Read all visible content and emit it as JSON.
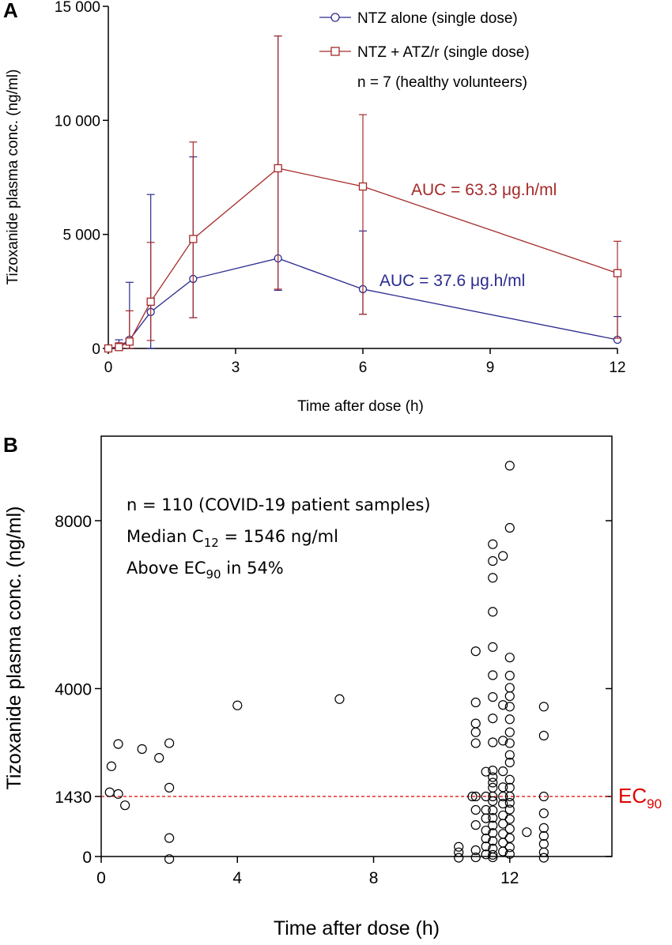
{
  "colors": {
    "blue": "#2b2b8f",
    "red": "#a52a2a",
    "ec90": "#e00000",
    "black": "#000000"
  },
  "chart_data": [
    {
      "panel": "A",
      "type": "line",
      "xlabel": "Time after dose (h)",
      "ylabel": "Tizoxanide plasma conc. (ng/ml)",
      "xlim": [
        0,
        12
      ],
      "ylim": [
        0,
        15000
      ],
      "xticks": [
        0,
        3,
        6,
        9,
        12
      ],
      "yticks": [
        0,
        5000,
        10000,
        15000
      ],
      "ytick_labels": [
        "0",
        "5 000",
        "10 000",
        "15 000"
      ],
      "series": [
        {
          "name": "NTZ alone (single dose)",
          "marker": "circle",
          "color": "#2b2b8f",
          "x": [
            0,
            0.25,
            0.5,
            1,
            2,
            4,
            6,
            12
          ],
          "y": [
            0,
            80,
            380,
            1600,
            3050,
            3950,
            2600,
            380
          ],
          "err_upper": [
            0,
            380,
            2900,
            6750,
            8400,
            13700,
            5150,
            1400
          ],
          "err_lower": [
            0,
            0,
            0,
            0,
            1350,
            2550,
            1500,
            380
          ]
        },
        {
          "name": "NTZ + ATZ/r (single dose)",
          "marker": "square",
          "color": "#a52a2a",
          "x": [
            0,
            0.25,
            0.5,
            1,
            2,
            4,
            6,
            12
          ],
          "y": [
            0,
            60,
            300,
            2050,
            4800,
            7900,
            7100,
            3300
          ],
          "err_upper": [
            0,
            250,
            1650,
            4650,
            9050,
            13700,
            10250,
            4700
          ],
          "err_lower": [
            0,
            0,
            0,
            350,
            1350,
            2600,
            1500,
            450
          ]
        }
      ],
      "annotations": {
        "n_text": "n = 7 (healthy volunteers)",
        "auc_red": "AUC = 63.3 μg.h/ml",
        "auc_blue": "AUC = 37.6 μg.h/ml"
      }
    },
    {
      "panel": "B",
      "type": "scatter",
      "xlabel": "Time after dose (h)",
      "ylabel": "Tizoxanide plasma conc. (ng/ml)",
      "xlim": [
        0,
        15
      ],
      "ylim": [
        0,
        10000
      ],
      "xticks": [
        0,
        4,
        8,
        12
      ],
      "yticks": [
        0,
        1430,
        4000,
        8000
      ],
      "reference_line": {
        "y": 1430,
        "label": "EC",
        "label_sub": "90"
      },
      "annotations": {
        "line1": "n = 110 (COVID-19 patient samples)",
        "line2_pre": "Median C",
        "line2_sub": "12",
        "line2_post": " = 1546 ng/ml",
        "line3_pre": "Above EC",
        "line3_sub": "90",
        "line3_post": " in 54%"
      },
      "points": [
        [
          0.25,
          1530
        ],
        [
          0.3,
          2150
        ],
        [
          0.5,
          1490
        ],
        [
          0.5,
          2680
        ],
        [
          0.7,
          1220
        ],
        [
          1.2,
          2560
        ],
        [
          1.7,
          2350
        ],
        [
          2,
          2700
        ],
        [
          2,
          1640
        ],
        [
          2,
          440
        ],
        [
          2,
          -60
        ],
        [
          4,
          3600
        ],
        [
          7,
          3750
        ],
        [
          10.5,
          230
        ],
        [
          10.5,
          100
        ],
        [
          10.5,
          -30
        ],
        [
          10.9,
          1430
        ],
        [
          11.0,
          1430
        ],
        [
          11.0,
          2960
        ],
        [
          11.0,
          3170
        ],
        [
          11.0,
          3670
        ],
        [
          11.0,
          4890
        ],
        [
          11.0,
          2700
        ],
        [
          11.0,
          1110
        ],
        [
          11.0,
          750
        ],
        [
          11.0,
          150
        ],
        [
          11.0,
          -20
        ],
        [
          11.3,
          2020
        ],
        [
          11.3,
          1430
        ],
        [
          11.3,
          1110
        ],
        [
          11.3,
          910
        ],
        [
          11.3,
          620
        ],
        [
          11.3,
          430
        ],
        [
          11.3,
          240
        ],
        [
          11.3,
          50
        ],
        [
          11.5,
          2720
        ],
        [
          11.5,
          3290
        ],
        [
          11.5,
          3800
        ],
        [
          11.5,
          4320
        ],
        [
          11.5,
          4990
        ],
        [
          11.5,
          5830
        ],
        [
          11.5,
          6640
        ],
        [
          11.5,
          7040
        ],
        [
          11.5,
          7440
        ],
        [
          11.5,
          2050
        ],
        [
          11.5,
          1890
        ],
        [
          11.5,
          1760
        ],
        [
          11.5,
          1640
        ],
        [
          11.5,
          1430
        ],
        [
          11.5,
          1320
        ],
        [
          11.5,
          1100
        ],
        [
          11.5,
          920
        ],
        [
          11.5,
          740
        ],
        [
          11.5,
          560
        ],
        [
          11.5,
          370
        ],
        [
          11.5,
          190
        ],
        [
          11.5,
          40
        ],
        [
          11.5,
          -20
        ],
        [
          11.8,
          7160
        ],
        [
          11.8,
          3610
        ],
        [
          11.8,
          2760
        ],
        [
          11.8,
          2030
        ],
        [
          11.8,
          1650
        ],
        [
          11.8,
          1430
        ],
        [
          11.8,
          1260
        ],
        [
          11.8,
          980
        ],
        [
          11.8,
          780
        ],
        [
          11.8,
          540
        ],
        [
          11.8,
          330
        ],
        [
          11.8,
          120
        ],
        [
          12,
          9310
        ],
        [
          12,
          7830
        ],
        [
          12,
          4740
        ],
        [
          12,
          4310
        ],
        [
          12,
          4020
        ],
        [
          12,
          3820
        ],
        [
          12,
          3570
        ],
        [
          12,
          3270
        ],
        [
          12,
          2960
        ],
        [
          12,
          2700
        ],
        [
          12,
          2420
        ],
        [
          12,
          2240
        ],
        [
          12,
          1830
        ],
        [
          12,
          1640
        ],
        [
          12,
          1430
        ],
        [
          12,
          1280
        ],
        [
          12,
          1120
        ],
        [
          12,
          890
        ],
        [
          12,
          660
        ],
        [
          12,
          440
        ],
        [
          12,
          220
        ],
        [
          12,
          60
        ],
        [
          12.5,
          580
        ],
        [
          13,
          3570
        ],
        [
          13,
          2880
        ],
        [
          13,
          1430
        ],
        [
          13,
          1030
        ],
        [
          13,
          680
        ],
        [
          13,
          490
        ],
        [
          13,
          300
        ],
        [
          13,
          100
        ],
        [
          13,
          -30
        ]
      ]
    }
  ],
  "labels": {
    "panel_a": "A",
    "panel_b": "B",
    "legend_blue": "NTZ alone (single dose)",
    "legend_red": "NTZ + ATZ/r (single dose)"
  }
}
